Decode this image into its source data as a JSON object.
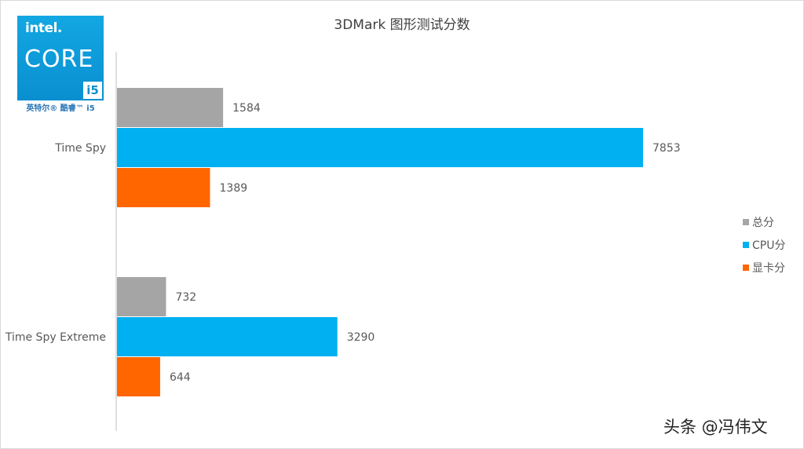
{
  "chart_data": {
    "type": "bar",
    "orientation": "horizontal",
    "title": "3DMark 图形测试分数",
    "categories": [
      "Time Spy",
      "Time Spy Extreme"
    ],
    "series": [
      {
        "name": "总分",
        "color": "#a5a5a5",
        "values": [
          1584,
          732
        ]
      },
      {
        "name": "CPU分",
        "color": "#00b0f0",
        "values": [
          7853,
          3290
        ]
      },
      {
        "name": "显卡分",
        "color": "#ff6600",
        "values": [
          1389,
          644
        ]
      }
    ],
    "xlim": [
      0,
      8500
    ],
    "legend_position": "right",
    "grid": false,
    "data_labels": true
  },
  "badge": {
    "brand": "intel.",
    "product": "CORE",
    "tier": "i5",
    "caption": "英特尔® 酷睿™ i5"
  },
  "watermark": "头条 @冯伟文"
}
